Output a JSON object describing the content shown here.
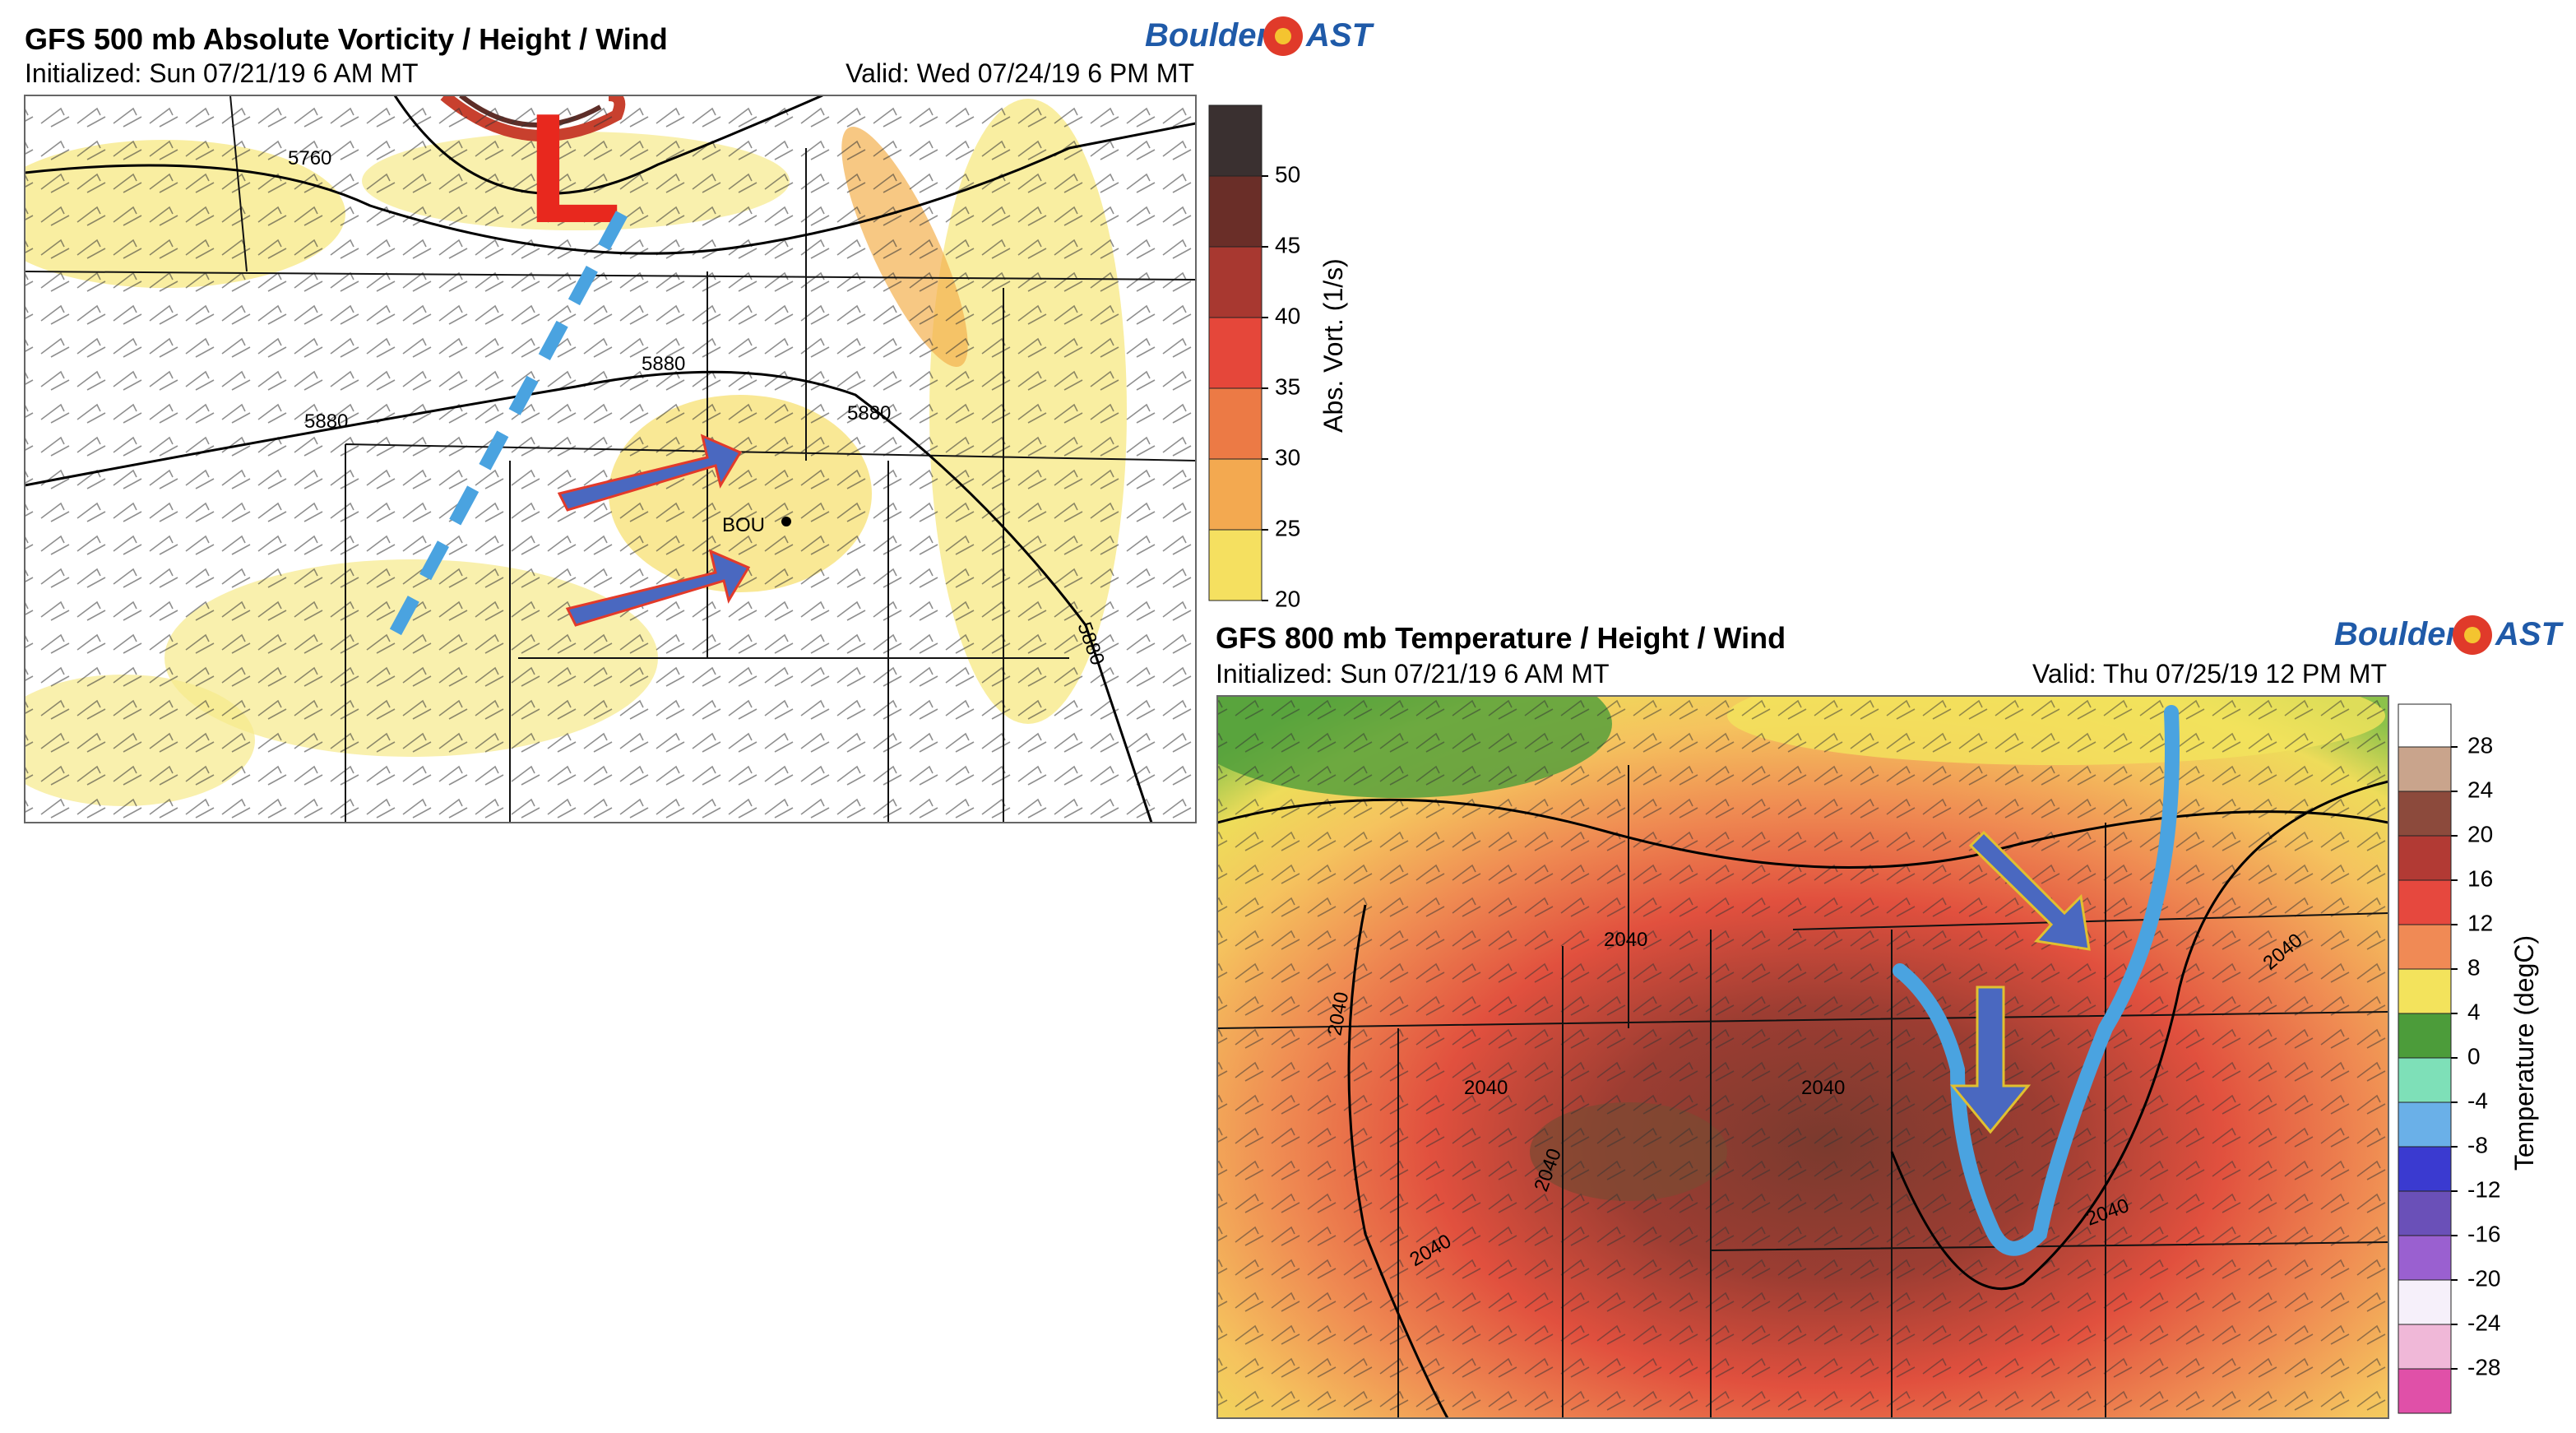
{
  "panels": [
    {
      "title": "GFS 500 mb Absolute Vorticity / Height / Wind",
      "initialized": "Initialized: Sun 07/21/19 6 AM MT",
      "valid": "Valid: Wed 07/24/19 6 PM MT",
      "logo": {
        "left": "Boulder",
        "right": "AST"
      },
      "colorbar": {
        "label": "Abs. Vort. (1/s)",
        "ticks": [
          50,
          45,
          40,
          35,
          30,
          25,
          20
        ]
      },
      "contour_labels": [
        "5760",
        "5880",
        "5880",
        "5880",
        "5880"
      ],
      "annotations": {
        "low": "L",
        "station": "BOU"
      }
    },
    {
      "title": "GFS 800 mb Temperature / Height / Wind",
      "initialized": "Initialized: Sun 07/21/19 6 AM MT",
      "valid": "Valid: Thu 07/25/19 12 PM MT",
      "logo": {
        "left": "Boulder",
        "right": "AST"
      },
      "colorbar": {
        "label": "Temperature (degC)",
        "ticks": [
          28,
          24,
          20,
          16,
          12,
          8,
          4,
          0,
          -4,
          -8,
          -12,
          -16,
          -20,
          -24,
          -28
        ]
      },
      "contour_labels": [
        "2040",
        "2040",
        "2040",
        "2040",
        "2040",
        "2040",
        "2040",
        "2040"
      ]
    }
  ]
}
